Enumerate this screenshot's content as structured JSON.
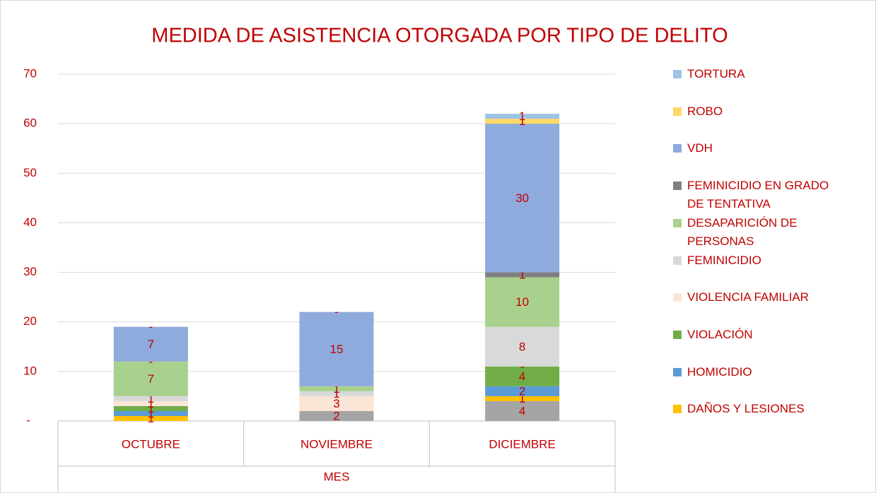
{
  "chart_data": {
    "type": "stacked_bar",
    "title": "MEDIDA DE ASISTENCIA OTORGADA POR TIPO DE DELITO",
    "x_label": "MES",
    "categories": [
      "OCTUBRE",
      "NOVIEMBRE",
      "DICIEMBRE"
    ],
    "ylim": [
      0,
      70
    ],
    "yticks": [
      {
        "value": 0,
        "label": "-"
      },
      10,
      20,
      30,
      40,
      50,
      60,
      70
    ],
    "grid": true,
    "legend": "right",
    "series": [
      {
        "name": null,
        "color": "#a5a5a5",
        "values": [
          0,
          2,
          4
        ],
        "value_labels": [
          null,
          "2",
          "4"
        ]
      },
      {
        "name": "DAÑOS Y LESIONES",
        "color": "#ffc000",
        "values": [
          1,
          0,
          1
        ],
        "value_labels": [
          "1",
          null,
          "1"
        ]
      },
      {
        "name": "HOMICIDIO",
        "color": "#5b9bd5",
        "values": [
          1,
          0,
          2
        ],
        "value_labels": [
          "1",
          null,
          "2"
        ]
      },
      {
        "name": "VIOLACIÓN",
        "color": "#70ad47",
        "values": [
          1,
          0,
          4
        ],
        "value_labels": [
          "1",
          null,
          "4"
        ]
      },
      {
        "name": "VIOLENCIA FAMILIAR",
        "color": "#fbe5d6",
        "values": [
          1,
          3,
          0
        ],
        "value_labels": [
          "1",
          "3",
          "-"
        ]
      },
      {
        "name": "FEMINICIDIO",
        "color": "#d9d9d9",
        "values": [
          1,
          1,
          8
        ],
        "value_labels": [
          "1",
          "1",
          "8"
        ]
      },
      {
        "name": "DESAPARICIÓN DE PERSONAS",
        "color": "#a9d18e",
        "values": [
          7,
          1,
          10
        ],
        "value_labels": [
          "7",
          "1",
          "10"
        ]
      },
      {
        "name": "FEMINICIDIO EN GRADO DE TENTATIVA",
        "color": "#7f7f7f",
        "values": [
          0,
          0,
          1
        ],
        "value_labels": [
          "-",
          null,
          "1"
        ]
      },
      {
        "name": "VDH",
        "color": "#8faadc",
        "values": [
          7,
          15,
          30
        ],
        "value_labels": [
          "7",
          "15",
          "30"
        ]
      },
      {
        "name": "ROBO",
        "color": "#ffd966",
        "values": [
          0,
          0,
          1
        ],
        "value_labels": [
          "-",
          null,
          "1"
        ]
      },
      {
        "name": "TORTURA",
        "color": "#9dc3e6",
        "values": [
          0,
          0,
          1
        ],
        "value_labels": [
          null,
          "-",
          "1"
        ]
      }
    ]
  }
}
